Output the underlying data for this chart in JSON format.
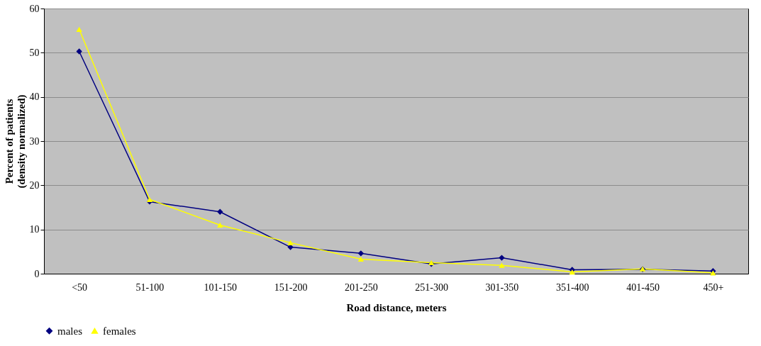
{
  "chart_data": {
    "type": "line",
    "xlabel": "Road distance, meters",
    "ylabel": "Percent of patients\n(density normalized)",
    "categories": [
      "<50",
      "51-100",
      "101-150",
      "151-200",
      "201-250",
      "251-300",
      "301-350",
      "351-400",
      "401-450",
      "450+"
    ],
    "series": [
      {
        "name": "males",
        "color": "#000080",
        "marker": "diamond",
        "values": [
          50.3,
          16.3,
          14,
          6,
          4.6,
          2.2,
          3.6,
          0.9,
          1.0,
          0.6
        ]
      },
      {
        "name": "females",
        "color": "#ffff00",
        "marker": "triangle",
        "values": [
          55.3,
          16.8,
          11,
          7,
          3.3,
          2.5,
          1.9,
          0.4,
          1.1,
          0.2
        ]
      }
    ],
    "ylim": [
      0,
      60
    ],
    "yticks": [
      0,
      10,
      20,
      30,
      40,
      50,
      60
    ],
    "grid": "y",
    "legend": "bottom"
  }
}
